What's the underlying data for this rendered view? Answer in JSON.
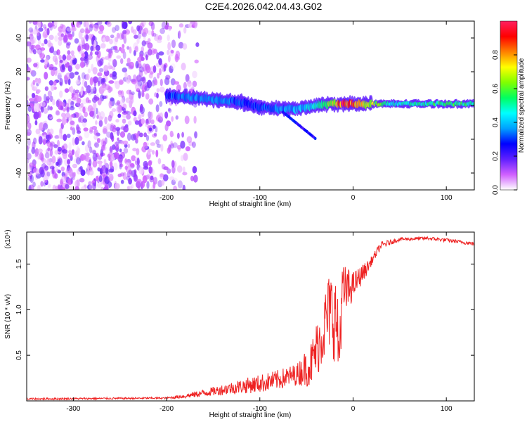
{
  "title": "C2E4.2026.042.04.43.G02",
  "chart_data": [
    {
      "type": "heatmap",
      "name": "spectrogram",
      "xlabel": "Height of straight line (km)",
      "ylabel": "Frequency (Hz)",
      "xlim": [
        -350,
        130
      ],
      "ylim": [
        -50,
        50
      ],
      "xticks": [
        -300,
        -200,
        -100,
        0,
        100
      ],
      "yticks": [
        -40,
        -20,
        0,
        20,
        40
      ],
      "colorbar": {
        "label": "Normalized spectral amplitude",
        "range": [
          0,
          1
        ],
        "ticks": [
          "0.0",
          "0.2",
          "0.4",
          "0.6",
          "0.8"
        ],
        "tick_values": [
          0.0,
          0.2,
          0.4,
          0.6,
          0.8
        ],
        "stops": [
          "#ffffff",
          "#d060ff",
          "#6020ff",
          "#0000ff",
          "#00a0ff",
          "#00ffff",
          "#00ff60",
          "#80ff00",
          "#ffff00",
          "#ff8000",
          "#ff0000",
          "#ff2060"
        ]
      },
      "noise_region": {
        "x": [
          -350,
          -165
        ],
        "y": [
          -50,
          50
        ]
      },
      "ridge": [
        {
          "x": -200,
          "y": 6,
          "amp": 0.3
        },
        {
          "x": -180,
          "y": 5,
          "amp": 0.35
        },
        {
          "x": -160,
          "y": 4,
          "amp": 0.35
        },
        {
          "x": -140,
          "y": 3,
          "amp": 0.35
        },
        {
          "x": -120,
          "y": 2,
          "amp": 0.3
        },
        {
          "x": -100,
          "y": -1,
          "amp": 0.3
        },
        {
          "x": -80,
          "y": -2,
          "amp": 0.35
        },
        {
          "x": -60,
          "y": -2,
          "amp": 0.4
        },
        {
          "x": -40,
          "y": 0,
          "amp": 0.45
        },
        {
          "x": -25,
          "y": 1,
          "amp": 0.6
        },
        {
          "x": -10,
          "y": 1,
          "amp": 0.95
        },
        {
          "x": 10,
          "y": 1,
          "amp": 0.75
        },
        {
          "x": 40,
          "y": 1,
          "amp": 0.45
        },
        {
          "x": 80,
          "y": 1,
          "amp": 0.5
        },
        {
          "x": 100,
          "y": 1,
          "amp": 0.55
        },
        {
          "x": 130,
          "y": 1,
          "amp": 0.5
        }
      ]
    },
    {
      "type": "line",
      "name": "snr",
      "xlabel": "Height of straight line (km)",
      "ylabel": "SNR (10 * v/v)",
      "scale_label": "(x10⁴)",
      "xlim": [
        -350,
        130
      ],
      "ylim": [
        0,
        1.85
      ],
      "xticks": [
        -300,
        -200,
        -100,
        0,
        100
      ],
      "yticks": [
        0.5,
        1.0,
        1.5
      ],
      "ytick_labels": [
        "0.5",
        "1.0",
        "1.5"
      ],
      "color": "#ee2222",
      "series": [
        {
          "name": "SNR",
          "envelope": [
            {
              "x": -350,
              "y": 0.02
            },
            {
              "x": -200,
              "y": 0.03
            },
            {
              "x": -180,
              "y": 0.05
            },
            {
              "x": -150,
              "y": 0.1
            },
            {
              "x": -120,
              "y": 0.15
            },
            {
              "x": -100,
              "y": 0.18
            },
            {
              "x": -80,
              "y": 0.22
            },
            {
              "x": -60,
              "y": 0.28
            },
            {
              "x": -45,
              "y": 0.38
            },
            {
              "x": -35,
              "y": 0.65
            },
            {
              "x": -25,
              "y": 0.95
            },
            {
              "x": -18,
              "y": 0.85
            },
            {
              "x": -15,
              "y": 0.45
            },
            {
              "x": -12,
              "y": 1.12
            },
            {
              "x": 0,
              "y": 1.25
            },
            {
              "x": 15,
              "y": 1.45
            },
            {
              "x": 30,
              "y": 1.7
            },
            {
              "x": 50,
              "y": 1.77
            },
            {
              "x": 80,
              "y": 1.78
            },
            {
              "x": 100,
              "y": 1.76
            },
            {
              "x": 130,
              "y": 1.72
            }
          ],
          "noise_amplitude": [
            {
              "x": -350,
              "y": 0.01
            },
            {
              "x": -200,
              "y": 0.01
            },
            {
              "x": -160,
              "y": 0.04
            },
            {
              "x": -100,
              "y": 0.1
            },
            {
              "x": -60,
              "y": 0.12
            },
            {
              "x": -40,
              "y": 0.3
            },
            {
              "x": -20,
              "y": 0.5
            },
            {
              "x": 0,
              "y": 0.15
            },
            {
              "x": 20,
              "y": 0.05
            },
            {
              "x": 50,
              "y": 0.02
            },
            {
              "x": 130,
              "y": 0.02
            }
          ]
        }
      ]
    }
  ]
}
